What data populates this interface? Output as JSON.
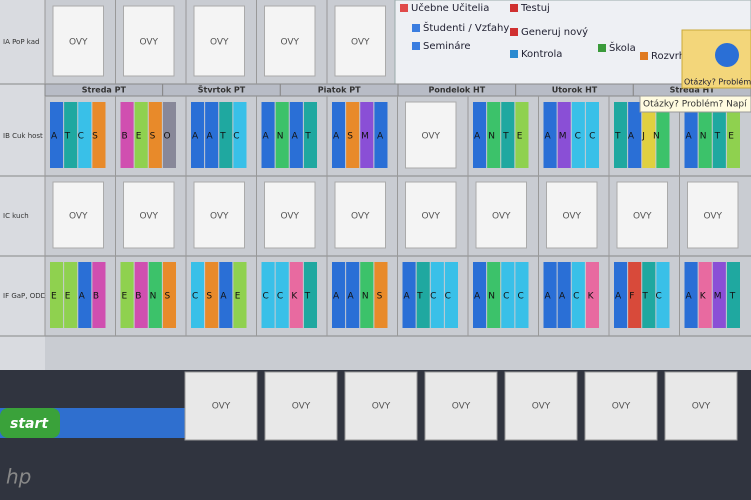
{
  "toolbar": {
    "items": [
      "Učebne Učitelia",
      "Študenti / Vzťahy",
      "Semináre",
      "Testuj",
      "Generuj nový",
      "Kontrola",
      "Škola",
      "Rozvrhy online"
    ],
    "help": "Otázky? Problém? Napíšte nám",
    "tooltip": "Otázky? Problém? Napí"
  },
  "grid": {
    "days": [
      "Streda PT",
      "Štvrtok PT",
      "Piatok PT",
      "Pondelok HT",
      "Utorok HT",
      "Streda HT"
    ],
    "rows": [
      {
        "label": "IA PoP kad",
        "cells": [
          "OVY",
          "OVY",
          "OVY",
          "OVY",
          "OVY"
        ]
      },
      {
        "label": "IB Cuk host",
        "cells": [
          "ATCS",
          "BESO",
          "AATC",
          "ANAT",
          "ASMA",
          "OVY",
          "ANTE",
          "AMCC",
          "TAJN",
          "ANTE"
        ]
      },
      {
        "label": "IC kuch",
        "cells": [
          "OVY",
          "OVY",
          "OVY",
          "OVY",
          "OVY",
          "OVY",
          "OVY",
          "OVY",
          "OVY",
          "OVY"
        ]
      },
      {
        "label": "IF GaP, ODD",
        "cells": [
          "EEAB",
          "EBNS",
          "CSAE",
          "CCKT",
          "AANS",
          "ATCC",
          "ANCC",
          "AACK",
          "AFTC",
          "AKMT"
        ]
      }
    ],
    "bottom": [
      "OVY",
      "OVY",
      "OVY",
      "OVY",
      "OVY",
      "OVY",
      "OVY"
    ]
  },
  "taskbar": {
    "start": "start",
    "logo": "hp"
  }
}
